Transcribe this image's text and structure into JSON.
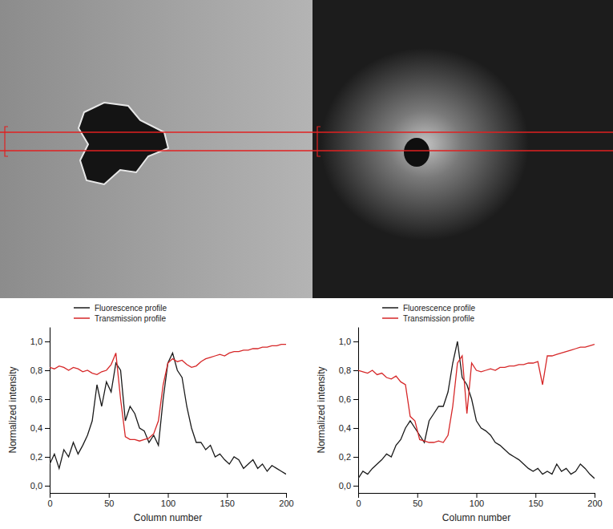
{
  "chart_data": [
    {
      "type": "line",
      "xlabel": "Column number",
      "ylabel": "Normalized intensity",
      "legend": "upper left",
      "x": [
        0,
        4,
        8,
        12,
        16,
        20,
        24,
        28,
        32,
        36,
        40,
        44,
        48,
        52,
        56,
        60,
        64,
        68,
        72,
        76,
        80,
        84,
        88,
        92,
        96,
        100,
        104,
        108,
        112,
        116,
        120,
        124,
        128,
        132,
        136,
        140,
        144,
        148,
        152,
        156,
        160,
        164,
        168,
        172,
        176,
        180,
        184,
        188,
        192,
        196,
        200
      ],
      "xlim": [
        0,
        200
      ],
      "xticks": [
        0,
        50,
        100,
        150,
        200
      ],
      "ylim": [
        -0.05,
        1.1
      ],
      "yticks": [
        {
          "value": 0,
          "label": "0,0"
        },
        {
          "value": 0.2,
          "label": "0,2"
        },
        {
          "value": 0.4,
          "label": "0,4"
        },
        {
          "value": 0.6,
          "label": "0,6"
        },
        {
          "value": 0.8,
          "label": "0,8"
        },
        {
          "value": 1,
          "label": "1,0"
        }
      ],
      "series": [
        {
          "name": "Fluorescence profile",
          "color": "#1a1a1a",
          "values": [
            0.15,
            0.22,
            0.12,
            0.25,
            0.2,
            0.3,
            0.22,
            0.28,
            0.35,
            0.45,
            0.7,
            0.55,
            0.72,
            0.65,
            0.85,
            0.8,
            0.45,
            0.55,
            0.5,
            0.4,
            0.38,
            0.3,
            0.35,
            0.28,
            0.6,
            0.85,
            0.92,
            0.8,
            0.75,
            0.55,
            0.4,
            0.3,
            0.3,
            0.25,
            0.28,
            0.2,
            0.22,
            0.18,
            0.15,
            0.2,
            0.18,
            0.12,
            0.15,
            0.18,
            0.12,
            0.15,
            0.1,
            0.14,
            0.12,
            0.1,
            0.08
          ]
        },
        {
          "name": "Transmission profile",
          "color": "#d62728",
          "values": [
            0.82,
            0.81,
            0.83,
            0.82,
            0.8,
            0.82,
            0.81,
            0.79,
            0.8,
            0.78,
            0.77,
            0.79,
            0.8,
            0.84,
            0.92,
            0.6,
            0.34,
            0.32,
            0.32,
            0.31,
            0.32,
            0.33,
            0.36,
            0.45,
            0.7,
            0.85,
            0.88,
            0.86,
            0.87,
            0.84,
            0.82,
            0.83,
            0.86,
            0.88,
            0.89,
            0.9,
            0.91,
            0.9,
            0.92,
            0.93,
            0.93,
            0.94,
            0.94,
            0.95,
            0.95,
            0.96,
            0.96,
            0.97,
            0.97,
            0.98,
            0.98
          ]
        }
      ]
    },
    {
      "type": "line",
      "xlabel": "Column number",
      "ylabel": "Normalized intensity",
      "legend": "upper left",
      "x": [
        0,
        4,
        8,
        12,
        16,
        20,
        24,
        28,
        32,
        36,
        40,
        44,
        48,
        52,
        56,
        60,
        64,
        68,
        72,
        76,
        80,
        84,
        88,
        92,
        96,
        100,
        104,
        108,
        112,
        116,
        120,
        124,
        128,
        132,
        136,
        140,
        144,
        148,
        152,
        156,
        160,
        164,
        168,
        172,
        176,
        180,
        184,
        188,
        192,
        196,
        200
      ],
      "xlim": [
        0,
        200
      ],
      "xticks": [
        0,
        50,
        100,
        150,
        200
      ],
      "ylim": [
        -0.05,
        1.1
      ],
      "yticks": [
        {
          "value": 0,
          "label": "0,0"
        },
        {
          "value": 0.2,
          "label": "0,2"
        },
        {
          "value": 0.4,
          "label": "0,4"
        },
        {
          "value": 0.6,
          "label": "0,6"
        },
        {
          "value": 0.8,
          "label": "0,8"
        },
        {
          "value": 1,
          "label": "1,0"
        }
      ],
      "series": [
        {
          "name": "Fluorescence profile",
          "color": "#1a1a1a",
          "values": [
            0.05,
            0.1,
            0.08,
            0.12,
            0.15,
            0.18,
            0.22,
            0.2,
            0.28,
            0.32,
            0.4,
            0.45,
            0.4,
            0.35,
            0.3,
            0.45,
            0.5,
            0.55,
            0.55,
            0.65,
            0.85,
            1.0,
            0.75,
            0.7,
            0.6,
            0.45,
            0.4,
            0.38,
            0.35,
            0.3,
            0.28,
            0.25,
            0.22,
            0.2,
            0.18,
            0.15,
            0.12,
            0.1,
            0.12,
            0.08,
            0.1,
            0.08,
            0.15,
            0.1,
            0.12,
            0.08,
            0.1,
            0.15,
            0.12,
            0.08,
            0.05
          ]
        },
        {
          "name": "Transmission profile",
          "color": "#d62728",
          "values": [
            0.8,
            0.79,
            0.78,
            0.8,
            0.77,
            0.78,
            0.75,
            0.74,
            0.76,
            0.72,
            0.7,
            0.48,
            0.45,
            0.32,
            0.31,
            0.3,
            0.3,
            0.31,
            0.3,
            0.35,
            0.55,
            0.85,
            0.9,
            0.5,
            0.85,
            0.8,
            0.79,
            0.8,
            0.81,
            0.8,
            0.82,
            0.82,
            0.83,
            0.83,
            0.84,
            0.84,
            0.85,
            0.85,
            0.86,
            0.7,
            0.9,
            0.9,
            0.91,
            0.92,
            0.93,
            0.94,
            0.95,
            0.96,
            0.96,
            0.97,
            0.98
          ]
        }
      ]
    }
  ]
}
